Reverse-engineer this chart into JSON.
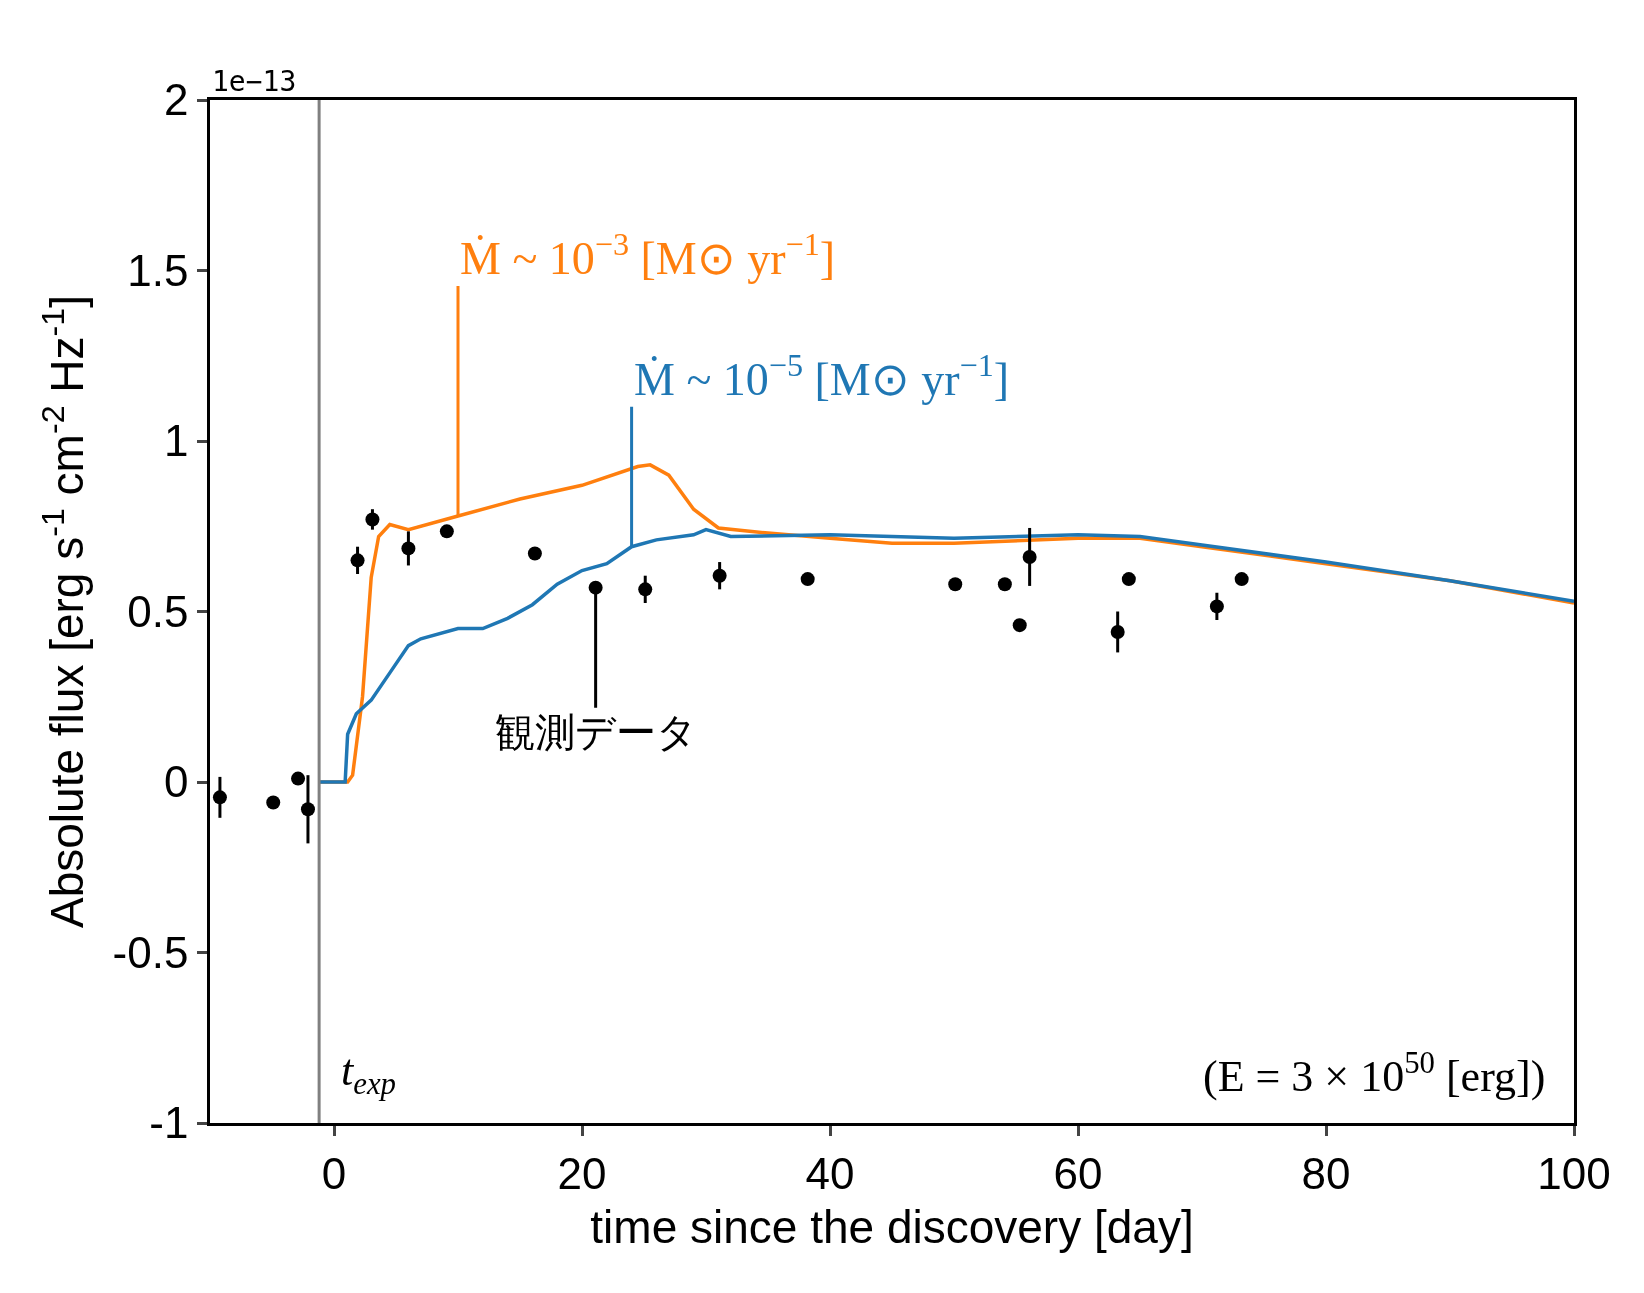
{
  "chart_data": {
    "type": "scatter",
    "xlabel": "time since the discovery [day]",
    "ylabel": "Absolute flux [erg s$^{-1}$ cm$^{-2}$ Hz$^{-1}$]",
    "xlim": [
      -10,
      100
    ],
    "xticks": [
      0,
      20,
      40,
      60,
      80,
      100
    ],
    "ylim": [
      -1,
      2
    ],
    "yticks": [
      -1,
      -0.5,
      0,
      0.5,
      1,
      1.5,
      2
    ],
    "grid": false,
    "legend": false,
    "ref_lines": [
      {
        "axis": "x",
        "value": -1.2,
        "label": "t$_{exp}$",
        "color": "#808080"
      }
    ],
    "annotations": [
      "1e−13",
      "(E = 3 × 10$^{50}$ [erg])"
    ],
    "series": [
      {
        "name": "Ṁ ~ 10$^{−3}$ [M⊙ yr$^{−1}$]",
        "type": "line",
        "color": "#ff7f0e",
        "marker": "none",
        "x": [
          -1.2,
          1.1,
          1.5,
          2.3,
          3,
          3.6,
          4.5,
          6,
          10,
          15,
          20,
          24.5,
          25.5,
          27,
          29,
          31,
          35,
          40,
          45,
          50,
          60,
          65,
          70,
          80,
          90,
          100
        ],
        "values": [
          0,
          0,
          0.02,
          0.25,
          0.6,
          0.72,
          0.755,
          0.74,
          0.78,
          0.83,
          0.87,
          0.925,
          0.93,
          0.9,
          0.8,
          0.745,
          0.73,
          0.715,
          0.7,
          0.7,
          0.715,
          0.715,
          0.69,
          0.64,
          0.59,
          0.525
        ]
      },
      {
        "name": "Ṁ ~ 10$^{−5}$ [M⊙ yr$^{−1}$]",
        "type": "line",
        "color": "#1f77b4",
        "marker": "none",
        "x": [
          -1.2,
          0.9,
          1.1,
          1.8,
          3,
          4.5,
          6,
          7,
          10,
          12,
          14,
          16,
          18,
          20,
          22,
          24,
          26,
          29,
          30,
          32,
          40,
          50,
          60,
          65,
          70,
          80,
          90,
          100
        ],
        "values": [
          0,
          0,
          0.14,
          0.2,
          0.24,
          0.32,
          0.4,
          0.42,
          0.45,
          0.45,
          0.48,
          0.52,
          0.58,
          0.62,
          0.64,
          0.69,
          0.71,
          0.725,
          0.74,
          0.72,
          0.725,
          0.715,
          0.725,
          0.72,
          0.695,
          0.645,
          0.59,
          0.53
        ]
      },
      {
        "name": "観測データ",
        "type": "scatter",
        "color": "#000000",
        "marker": "circle",
        "x": [
          -9.2,
          -4.9,
          -2.9,
          -2.1,
          1.9,
          3.1,
          6.0,
          9.1,
          16.2,
          21.1,
          25.1,
          31.1,
          38.2,
          50.1,
          54.1,
          55.3,
          56.1,
          63.2,
          64.1,
          71.2,
          73.2
        ],
        "values": [
          -0.045,
          -0.06,
          0.01,
          -0.08,
          0.65,
          0.77,
          0.685,
          0.735,
          0.67,
          0.57,
          0.565,
          0.605,
          0.595,
          0.58,
          0.58,
          0.46,
          0.66,
          0.44,
          0.595,
          0.515,
          0.595
        ],
        "errors": [
          0.06,
          null,
          null,
          0.1,
          0.04,
          0.03,
          0.05,
          null,
          null,
          null,
          0.04,
          0.04,
          null,
          null,
          null,
          null,
          0.085,
          0.06,
          null,
          0.04,
          null
        ]
      }
    ]
  }
}
